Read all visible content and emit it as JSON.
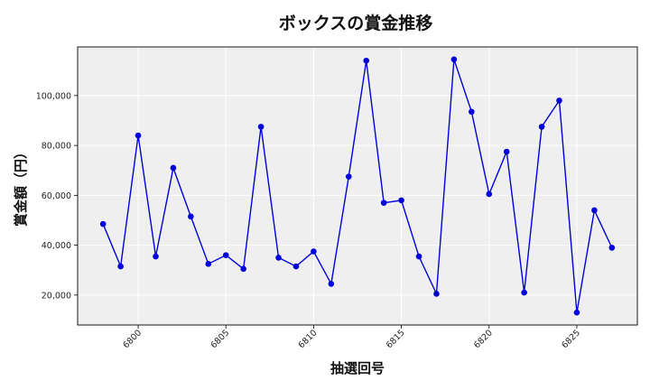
{
  "chart_data": {
    "type": "line",
    "title": "ボックスの賞金推移",
    "xlabel": "抽選回号",
    "ylabel": "賞金額（円）",
    "x": [
      6798,
      6799,
      6800,
      6801,
      6802,
      6803,
      6804,
      6805,
      6806,
      6807,
      6808,
      6809,
      6810,
      6811,
      6812,
      6813,
      6814,
      6815,
      6816,
      6817,
      6818,
      6819,
      6820,
      6821,
      6822,
      6823,
      6824,
      6825,
      6826,
      6827
    ],
    "series": [
      {
        "values": [
          48500,
          31500,
          84000,
          35500,
          71000,
          51500,
          32500,
          36000,
          30500,
          87500,
          35000,
          31500,
          37500,
          24500,
          67500,
          114000,
          57000,
          58000,
          35500,
          20500,
          114500,
          93500,
          60500,
          77500,
          21000,
          87500,
          98000,
          13000,
          54000,
          39000
        ]
      }
    ],
    "x_ticks": [
      6800,
      6805,
      6810,
      6815,
      6820,
      6825
    ],
    "x_tick_labels": [
      "6800",
      "6805",
      "6810",
      "6815",
      "6820",
      "6825"
    ],
    "y_ticks": [
      20000,
      40000,
      60000,
      80000,
      100000
    ],
    "y_tick_labels": [
      "20,000",
      "40,000",
      "60,000",
      "80,000",
      "100,000"
    ],
    "xlim": [
      6796.55,
      6828.45
    ],
    "ylim": [
      8000,
      119500
    ],
    "grid": true,
    "colors": {
      "line": "#0000dd",
      "marker": "#0000dd",
      "plot_bg": "#efefef",
      "grid": "#ffffff"
    }
  }
}
